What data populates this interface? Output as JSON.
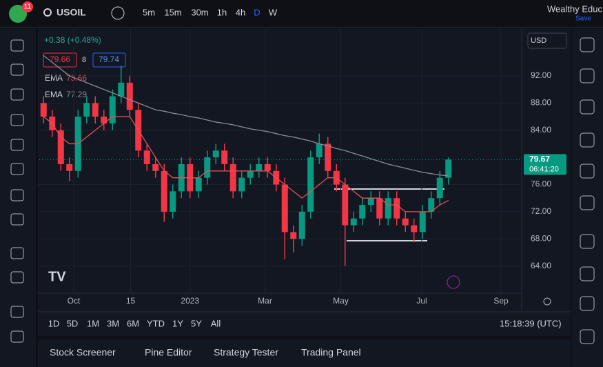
{
  "header": {
    "badge": "11",
    "symbol": "USOIL",
    "intervals": [
      "5m",
      "15m",
      "30m",
      "1h",
      "4h",
      "D",
      "W"
    ],
    "account": "Wealthy Educ",
    "save": "Save"
  },
  "legend": {
    "change": "+0.38 (+0.48%)",
    "bid": "79.66",
    "spread": "8",
    "ask": "79.74",
    "ema_fast": {
      "label": "EMA",
      "value": "73.66"
    },
    "ema_slow": {
      "label": "EMA",
      "value": "77.29"
    }
  },
  "currency": "USD",
  "chart_data": {
    "type": "candlestick",
    "up_color": "#089981",
    "down_color": "#f23645",
    "open": [
      88,
      86,
      84,
      79,
      78,
      86,
      88,
      86,
      85,
      89,
      91,
      87,
      81,
      79,
      78,
      72,
      75,
      79,
      75,
      77,
      80,
      81,
      79,
      75,
      77,
      78,
      79,
      78,
      76,
      69,
      68,
      72,
      80,
      82,
      78,
      76,
      70,
      71,
      73,
      74,
      71,
      74,
      71,
      70,
      69,
      72,
      74,
      77
    ],
    "high": [
      89,
      87,
      85,
      80,
      87,
      89,
      89,
      87,
      90,
      93.5,
      92,
      88,
      82,
      80,
      79,
      76,
      80,
      80,
      78,
      81,
      82,
      82,
      80,
      78,
      79,
      80,
      80,
      79,
      77,
      70,
      73,
      81,
      83.5,
      83,
      79,
      77,
      72,
      74,
      75,
      75,
      75,
      75,
      72,
      71,
      73,
      75,
      78,
      80
    ],
    "low": [
      85,
      83,
      78,
      76.5,
      77,
      85,
      85,
      84,
      84,
      88,
      86,
      80,
      78,
      77,
      70.5,
      71,
      74,
      74,
      74,
      76,
      79,
      78,
      74,
      74,
      76,
      77,
      77,
      75,
      65,
      66,
      67,
      71,
      79,
      77,
      75,
      64,
      69,
      70,
      72,
      70,
      70,
      70,
      69,
      67.5,
      68,
      71,
      73,
      76
    ],
    "close": [
      86,
      84,
      79,
      78,
      86,
      88,
      86,
      85,
      89,
      91,
      87,
      81,
      79,
      78,
      72,
      75,
      79,
      75,
      77,
      80,
      81,
      79,
      75,
      77,
      78,
      79,
      78,
      76,
      69,
      68,
      72,
      80,
      82,
      78,
      76,
      70,
      71,
      73,
      74,
      71,
      74,
      71,
      70,
      69,
      72,
      74,
      77,
      79.67
    ],
    "series": [
      {
        "name": "EMA",
        "color": "#e0505a",
        "values": [
          86,
          85,
          83,
          82,
          82,
          83,
          84,
          85,
          86,
          86,
          86,
          84,
          82,
          80,
          78,
          77,
          77,
          77,
          77,
          78,
          78,
          78,
          78,
          78,
          78,
          78,
          78,
          77,
          76,
          75,
          74,
          75,
          76,
          77,
          77,
          76,
          75,
          74,
          74,
          74,
          73,
          73,
          72,
          72,
          72,
          72,
          73,
          73.66
        ]
      },
      {
        "name": "EMA",
        "color": "#8a8d96",
        "values": [
          95,
          94,
          93,
          92,
          91.5,
          91,
          90.5,
          90,
          89.5,
          89,
          88.5,
          88,
          87.5,
          87,
          86.8,
          86.5,
          86.3,
          86,
          85.8,
          85.5,
          85.2,
          85,
          84.8,
          84.5,
          84.2,
          84,
          83.8,
          83.5,
          83.2,
          83,
          82.7,
          82.4,
          82,
          81.7,
          81.3,
          81,
          80.6,
          80.2,
          79.8,
          79.4,
          79,
          78.7,
          78.4,
          78.1,
          77.8,
          77.6,
          77.4,
          77.29
        ]
      }
    ],
    "ylim": [
      60,
      98.3
    ],
    "yticks": [
      {
        "value": 92,
        "label": "92.00"
      },
      {
        "value": 88,
        "label": "88.00"
      },
      {
        "value": 84,
        "label": "84.00"
      },
      {
        "value": 76,
        "label": "76.00"
      },
      {
        "value": 72,
        "label": "72.00"
      },
      {
        "value": 68,
        "label": "68.00"
      },
      {
        "value": 64,
        "label": "64.00"
      }
    ],
    "xlim": [
      -0.5,
      55.5
    ],
    "xticks": [
      {
        "value": 3.5,
        "label": "Oct"
      },
      {
        "value": 10.1,
        "label": "15"
      },
      {
        "value": 17,
        "label": "2023"
      },
      {
        "value": 25.7,
        "label": "Mar"
      },
      {
        "value": 34.5,
        "label": "May"
      },
      {
        "value": 43.9,
        "label": "Jul"
      },
      {
        "value": 53.1,
        "label": "Sep"
      }
    ],
    "last_price": {
      "value": 79.67,
      "label": "79.67",
      "countdown": "06:41:20"
    }
  },
  "ranges": [
    "1D",
    "5D",
    "1M",
    "3M",
    "6M",
    "YTD",
    "1Y",
    "5Y",
    "All"
  ],
  "clock": "15:18:39 (UTC)",
  "tabs": [
    "Stock Screener",
    "Pine Editor",
    "Strategy Tester",
    "Trading Panel"
  ]
}
